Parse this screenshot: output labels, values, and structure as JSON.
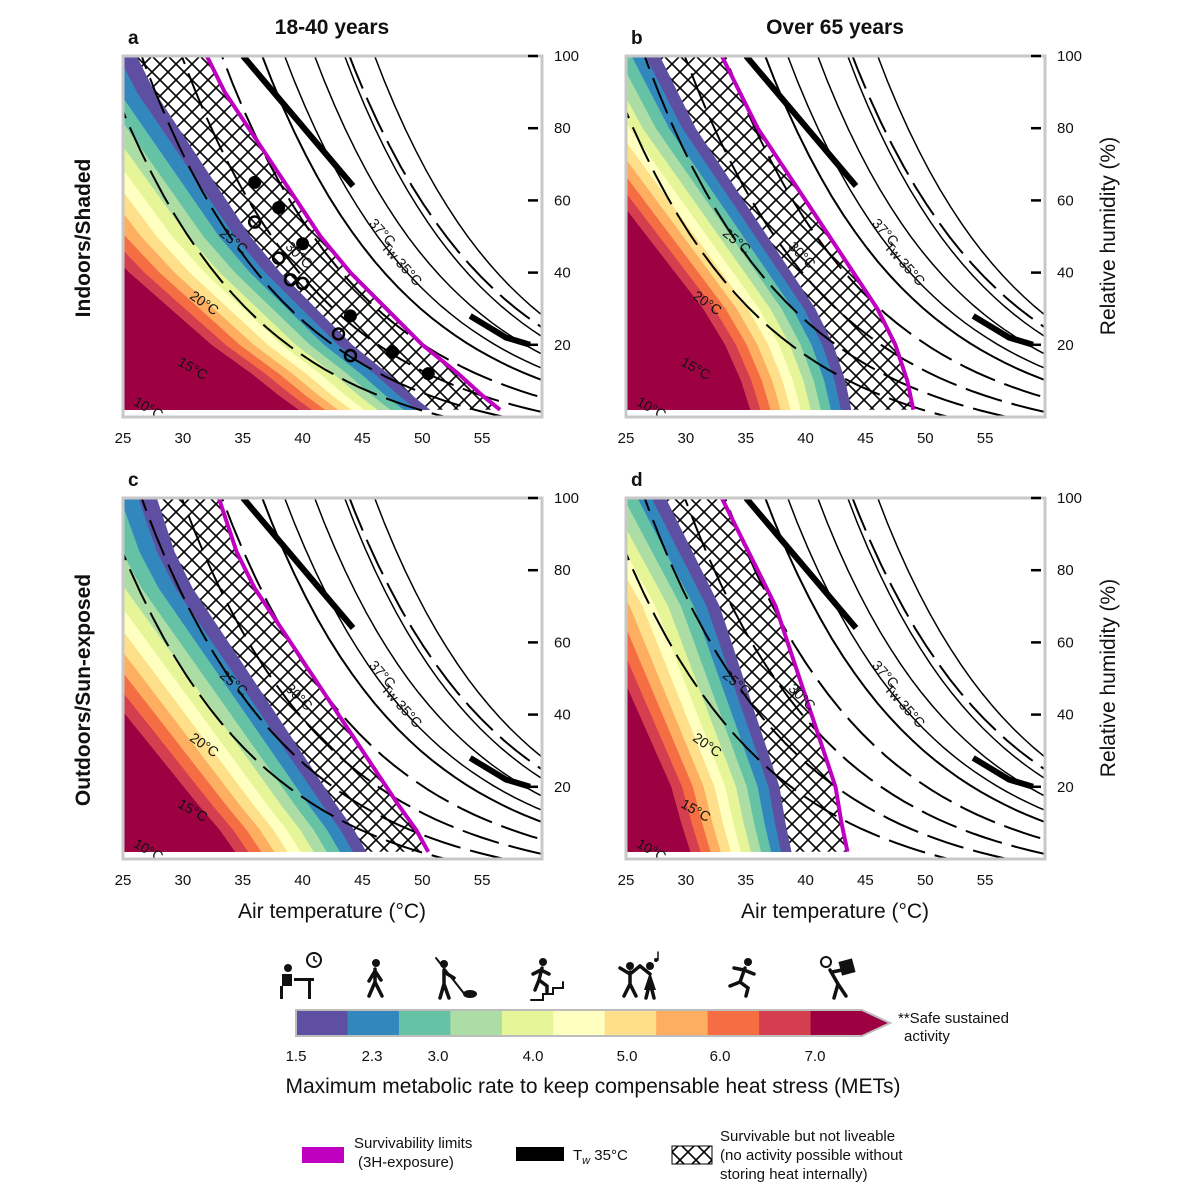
{
  "chart_data": [
    {
      "panel": "a",
      "type": "contour",
      "column_title": "18-40 years",
      "row_title": "Indoors/Shaded",
      "xlabel": "",
      "ylabel": "",
      "xlim": [
        25,
        60
      ],
      "ylim": [
        0,
        100
      ],
      "x_ticks": [
        "25",
        "30",
        "35",
        "40",
        "45",
        "50",
        "55"
      ],
      "y_ticks": [],
      "wet_bulb_labels": [
        "10°C",
        "15°C",
        "20°C",
        "25°C",
        "30°C",
        "37°C"
      ],
      "tw35_label": "Tw 35°C",
      "survivability_limit": [
        [
          56.5,
          2
        ],
        [
          55,
          6
        ],
        [
          53,
          12
        ],
        [
          50,
          20
        ],
        [
          47,
          30
        ],
        [
          44,
          40
        ],
        [
          41.5,
          50
        ],
        [
          39.5,
          60
        ],
        [
          37.5,
          70
        ],
        [
          35.5,
          80
        ],
        [
          33.5,
          90
        ],
        [
          32,
          100
        ]
      ],
      "tw35_line": [
        [
          54,
          28
        ],
        [
          57,
          22
        ],
        [
          59,
          20
        ]
      ],
      "observations_filled": [
        [
          36,
          65
        ],
        [
          38,
          58
        ],
        [
          40,
          48
        ],
        [
          44,
          28
        ],
        [
          47.5,
          18
        ],
        [
          50.5,
          12
        ]
      ],
      "observations_open": [
        [
          36,
          54
        ],
        [
          38,
          44
        ],
        [
          39,
          38
        ],
        [
          40,
          37
        ],
        [
          43,
          23
        ],
        [
          44,
          17
        ]
      ]
    },
    {
      "panel": "b",
      "type": "contour",
      "column_title": "Over 65 years",
      "xlabel": "",
      "ylabel": "Relative humidity (%)",
      "xlim": [
        25,
        60
      ],
      "ylim": [
        0,
        100
      ],
      "x_ticks": [
        "25",
        "30",
        "35",
        "40",
        "45",
        "50",
        "55"
      ],
      "y_ticks": [
        "20",
        "40",
        "60",
        "80",
        "100"
      ],
      "wet_bulb_labels": [
        "10°C",
        "15°C",
        "20°C",
        "25°C",
        "30°C",
        "37°C"
      ],
      "tw35_label": "Tw 35°C",
      "survivability_limit": [
        [
          49,
          2
        ],
        [
          48.5,
          10
        ],
        [
          47.5,
          20
        ],
        [
          46,
          30
        ],
        [
          44,
          40
        ],
        [
          42,
          50
        ],
        [
          40,
          60
        ],
        [
          38,
          70
        ],
        [
          36,
          80
        ],
        [
          34.5,
          90
        ],
        [
          33,
          100
        ]
      ],
      "tw35_line": [
        [
          54,
          28
        ],
        [
          57,
          22
        ],
        [
          59,
          20
        ]
      ]
    },
    {
      "panel": "c",
      "type": "contour",
      "row_title": "Outdoors/Sun-exposed",
      "xlabel": "Air temperature (°C)",
      "ylabel": "",
      "xlim": [
        25,
        60
      ],
      "ylim": [
        0,
        100
      ],
      "x_ticks": [
        "25",
        "30",
        "35",
        "40",
        "45",
        "50",
        "55"
      ],
      "y_ticks": [],
      "wet_bulb_labels": [
        "10°C",
        "15°C",
        "20°C",
        "25°C",
        "30°C",
        "37°C"
      ],
      "tw35_label": "Tw 35°C",
      "survivability_limit": [
        [
          50.5,
          2
        ],
        [
          49.5,
          8
        ],
        [
          48,
          15
        ],
        [
          46,
          25
        ],
        [
          44,
          35
        ],
        [
          42,
          45
        ],
        [
          40,
          55
        ],
        [
          38,
          65
        ],
        [
          36,
          75
        ],
        [
          34.5,
          85
        ],
        [
          33,
          100
        ]
      ],
      "tw35_line": [
        [
          54,
          28
        ],
        [
          57,
          22
        ],
        [
          59,
          20
        ]
      ]
    },
    {
      "panel": "d",
      "type": "contour",
      "xlabel": "Air temperature (°C)",
      "ylabel": "Relative humidity (%)",
      "xlim": [
        25,
        60
      ],
      "ylim": [
        0,
        100
      ],
      "x_ticks": [
        "25",
        "30",
        "35",
        "40",
        "45",
        "50",
        "55"
      ],
      "y_ticks": [
        "20",
        "40",
        "60",
        "80",
        "100"
      ],
      "wet_bulb_labels": [
        "10°C",
        "15°C",
        "20°C",
        "25°C",
        "30°C",
        "37°C"
      ],
      "tw35_label": "Tw 35°C",
      "survivability_limit": [
        [
          43.5,
          2
        ],
        [
          43,
          10
        ],
        [
          42.5,
          20
        ],
        [
          41.5,
          30
        ],
        [
          40.5,
          40
        ],
        [
          39.5,
          50
        ],
        [
          38.5,
          60
        ],
        [
          37.5,
          70
        ],
        [
          36,
          80
        ],
        [
          34.5,
          90
        ],
        [
          33,
          100
        ]
      ],
      "tw35_line": [
        [
          54,
          28
        ],
        [
          57,
          22
        ],
        [
          59,
          20
        ]
      ]
    }
  ],
  "colorbar": {
    "title": "Maximum metabolic rate to keep compensable heat stress (METs)",
    "ticks": [
      "1.5",
      "2.3",
      "3.0",
      "4.0",
      "5.0",
      "6.0",
      "7.0"
    ],
    "colors": [
      "#5e4fa2",
      "#3288bd",
      "#66c2a5",
      "#abdda4",
      "#e6f598",
      "#ffffbf",
      "#fee08b",
      "#fdae61",
      "#f46d43",
      "#d53e4f",
      "#9e0142"
    ],
    "extend_note_line1": "**Safe sustained",
    "extend_note_line2": "activity",
    "activity_icons": [
      "office-work-icon",
      "walking-icon",
      "raking-icon",
      "stair-climbing-icon",
      "dancing-icon",
      "running-icon",
      "carrying-load-icon"
    ]
  },
  "legend": {
    "survivability_line1": "Survivability limits",
    "survivability_line2": "(3H-exposure)",
    "tw35": "T",
    "tw35_sub": "w",
    "tw35_rest": " 35°C",
    "hatch_line1": "Survivable but not liveable",
    "hatch_line2": "(no activity possible without",
    "hatch_line3": "storing heat internally)",
    "survivability_color": "#c000c0",
    "tw35_color": "#000000"
  }
}
